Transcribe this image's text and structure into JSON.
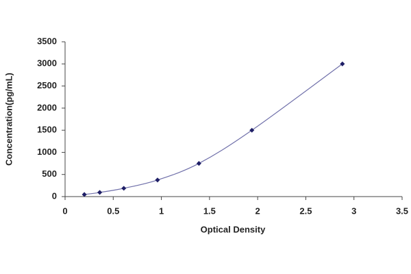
{
  "chart_data": {
    "type": "scatter",
    "x_label": "Optical Density",
    "y_label": "Concentration(pg/mL)",
    "x": [
      0.2,
      0.36,
      0.61,
      0.96,
      1.39,
      1.94,
      2.88
    ],
    "values": [
      47,
      94,
      188,
      375,
      750,
      1500,
      3000
    ],
    "color": "#1f1f66",
    "line_color": "#7070aa",
    "xlim": [
      0,
      3.5
    ],
    "xticks": [
      0,
      0.5,
      1,
      1.5,
      2,
      2.5,
      3,
      3.5
    ],
    "ylim": [
      0,
      3500
    ],
    "yticks": [
      0,
      500,
      1000,
      1500,
      2000,
      2500,
      3000,
      3500
    ],
    "grid": false
  }
}
